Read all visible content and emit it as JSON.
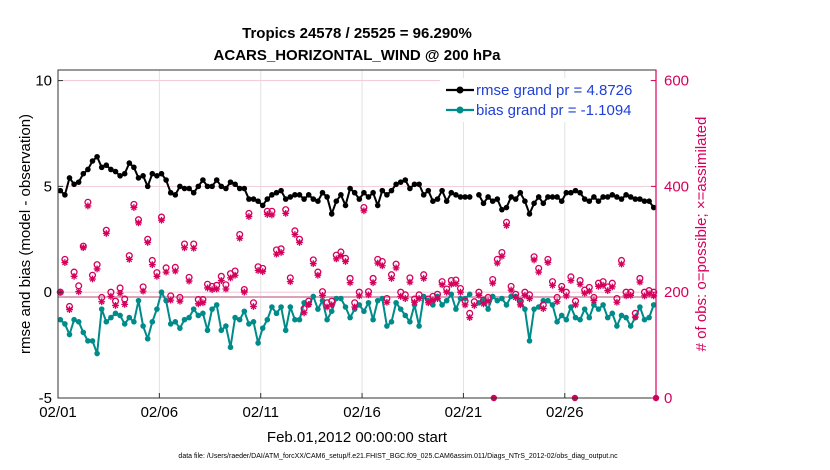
{
  "chart_data": {
    "type": "line",
    "title": "Tropics 24578 / 25525 = 96.290%",
    "subtitle": "ACARS_HORIZONTAL_WIND @ 200 hPa",
    "xlabel": "Feb.01,2012 00:00:00 start",
    "ylabel_left": "rmse and bias (model - observation)",
    "ylabel_right": "# of obs: o=possible; ×=assimilated",
    "x_tick_labels": [
      "02/01",
      "02/06",
      "02/11",
      "02/16",
      "02/21",
      "02/26"
    ],
    "y_left_ticks": [
      "-5",
      "0",
      "5",
      "10"
    ],
    "y_right_ticks": [
      "0",
      "200",
      "400",
      "600"
    ],
    "ylim_left": [
      -5,
      10.5
    ],
    "ylim_right": [
      0,
      620
    ],
    "x_range_days": [
      0,
      29.5
    ],
    "footnote": "data file: /Users/raeder/DAI/ATM_forcXX/CAM6_setup/f.e21.FHIST_BGC.f09_025.CAM6assim.011/Diags_NTrS_2012-02/obs_diag_output.nc",
    "series": [
      {
        "name": "rmse grand pr = 4.8726",
        "axis": "left",
        "color": "#000000",
        "marker": "dot",
        "values": [
          4.8,
          4.6,
          5.4,
          5.1,
          5.2,
          5.6,
          5.8,
          6.2,
          6.4,
          5.9,
          6.0,
          5.8,
          5.7,
          5.5,
          5.6,
          6.1,
          5.9,
          5.4,
          5.5,
          5.0,
          5.6,
          5.5,
          5.6,
          5.3,
          4.7,
          4.6,
          5.0,
          4.9,
          4.9,
          4.7,
          5.0,
          5.3,
          5.0,
          5.0,
          5.3,
          5.0,
          4.9,
          5.2,
          5.1,
          4.9,
          4.9,
          4.4,
          4.4,
          4.3,
          4.1,
          4.4,
          4.6,
          4.7,
          4.8,
          4.4,
          4.5,
          4.6,
          4.6,
          4.4,
          4.6,
          4.4,
          4.3,
          4.7,
          4.5,
          3.7,
          4.3,
          4.6,
          4.1,
          4.9,
          4.7,
          4.4,
          4.7,
          4.5,
          4.7,
          4.1,
          4.8,
          4.6,
          4.8,
          5.1,
          5.2,
          5.3,
          4.9,
          5.1,
          5.1,
          4.6,
          4.8,
          4.3,
          4.4,
          4.8,
          4.3,
          4.7,
          4.6,
          4.5,
          4.5,
          4.5,
          null,
          4.6,
          4.2,
          4.5,
          4.3,
          4.4,
          3.9,
          4.0,
          4.5,
          4.4,
          4.7,
          4.3,
          3.7,
          4.2,
          4.5,
          4.2,
          4.5,
          4.5,
          4.5,
          4.3,
          4.7,
          4.7,
          4.8,
          4.7,
          4.4,
          4.3,
          4.5,
          4.3,
          4.5,
          4.5,
          4.6,
          4.5,
          4.4,
          4.6,
          4.5,
          4.4,
          4.4,
          4.3,
          4.3,
          4.0
        ]
      },
      {
        "name": "bias grand pr = -1.1094",
        "axis": "left",
        "color": "#008b8b",
        "marker": "dot",
        "values": [
          -1.3,
          -1.5,
          -2.0,
          -1.3,
          -1.4,
          -1.9,
          -2.3,
          -2.3,
          -2.9,
          -0.8,
          -1.4,
          -1.2,
          -1.0,
          -1.1,
          -1.5,
          -1.2,
          -1.4,
          -0.4,
          -1.6,
          -2.2,
          -1.4,
          -0.8,
          0.0,
          -0.4,
          -1.5,
          -1.4,
          -1.7,
          -1.3,
          -1.2,
          -0.8,
          -1.1,
          -1.0,
          -1.8,
          -0.8,
          -0.6,
          -1.8,
          -1.6,
          -2.6,
          -1.2,
          -1.3,
          -0.9,
          -1.5,
          -1.4,
          -2.4,
          -1.7,
          -1.3,
          -0.7,
          -1.0,
          -0.7,
          -1.8,
          -0.7,
          -1.3,
          -1.3,
          -0.5,
          -0.6,
          -0.2,
          -0.8,
          -0.4,
          -1.3,
          -0.9,
          -0.3,
          -0.3,
          -0.7,
          -1.2,
          -0.8,
          -0.6,
          -0.9,
          -0.5,
          -1.3,
          -0.4,
          -0.3,
          -1.6,
          -1.4,
          -0.5,
          -0.8,
          -1.1,
          -1.4,
          -0.6,
          -1.6,
          -0.2,
          -0.4,
          -0.6,
          -0.2,
          -0.6,
          -0.4,
          -0.1,
          -0.8,
          -0.3,
          -0.3,
          -0.1,
          null,
          -0.5,
          -0.4,
          -0.8,
          -0.2,
          -0.4,
          -0.3,
          -0.6,
          -0.2,
          -0.2,
          -0.4,
          -0.8,
          -2.3,
          -0.8,
          -0.7,
          -0.4,
          -0.4,
          -0.6,
          -1.4,
          -1.1,
          -1.3,
          -0.7,
          -1.2,
          -1.3,
          -0.8,
          -1.2,
          -0.6,
          -0.8,
          -0.6,
          -1.2,
          -1.0,
          -1.6,
          -1.1,
          -1.2,
          -1.6,
          -1.2,
          -0.7,
          -1.3,
          -1.2,
          -0.6
        ]
      },
      {
        "name": "possible",
        "axis": "right",
        "color": "#d6005c",
        "marker": "circle",
        "values": [
          200,
          262,
          173,
          238,
          212,
          287,
          370,
          232,
          252,
          190,
          317,
          200,
          183,
          208,
          187,
          269,
          366,
          337,
          210,
          300,
          260,
          237,
          342,
          246,
          193,
          247,
          190,
          291,
          228,
          291,
          186,
          186,
          215,
          211,
          213,
          230,
          214,
          235,
          240,
          309,
          205,
          349,
          180,
          248,
          245,
          353,
          353,
          280,
          282,
          356,
          227,
          316,
          300,
          169,
          183,
          261,
          238,
          201,
          180,
          183,
          270,
          276,
          264,
          226,
          180,
          200,
          360,
          201,
          226,
          262,
          258,
          188,
          233,
          253,
          200,
          195,
          227,
          187,
          195,
          233,
          187,
          192,
          196,
          220,
          206,
          222,
          223,
          207,
          183,
          160,
          182,
          200,
          185,
          190,
          224,
          262,
          275,
          332,
          211,
          196,
          183,
          200,
          195,
          267,
          245,
          176,
          262,
          220,
          190,
          211,
          200,
          229,
          183,
          222,
          204,
          209,
          190,
          217,
          220,
          210,
          217,
          188,
          260,
          200,
          200,
          160,
          226,
          200,
          203,
          200
        ]
      },
      {
        "name": "assimilated",
        "axis": "right",
        "color": "#d6005c",
        "marker": "asterisk",
        "values": [
          200,
          256,
          167,
          230,
          201,
          284,
          363,
          225,
          244,
          182,
          311,
          192,
          175,
          198,
          177,
          262,
          360,
          331,
          202,
          294,
          252,
          230,
          336,
          238,
          185,
          240,
          183,
          284,
          221,
          283,
          178,
          180,
          208,
          205,
          206,
          222,
          206,
          227,
          232,
          302,
          200,
          343,
          173,
          241,
          239,
          347,
          346,
          272,
          275,
          349,
          220,
          309,
          294,
          161,
          177,
          254,
          232,
          194,
          172,
          176,
          263,
          269,
          258,
          218,
          172,
          193,
          354,
          195,
          218,
          255,
          250,
          181,
          226,
          246,
          192,
          188,
          219,
          181,
          188,
          226,
          180,
          185,
          188,
          214,
          200,
          215,
          216,
          200,
          176,
          152,
          175,
          194,
          178,
          183,
          217,
          255,
          268,
          326,
          204,
          190,
          176,
          194,
          188,
          261,
          238,
          169,
          256,
          213,
          182,
          205,
          193,
          222,
          176,
          215,
          198,
          202,
          184,
          211,
          213,
          203,
          210,
          181,
          253,
          193,
          194,
          153,
          219,
          193,
          197,
          193
        ]
      }
    ]
  }
}
